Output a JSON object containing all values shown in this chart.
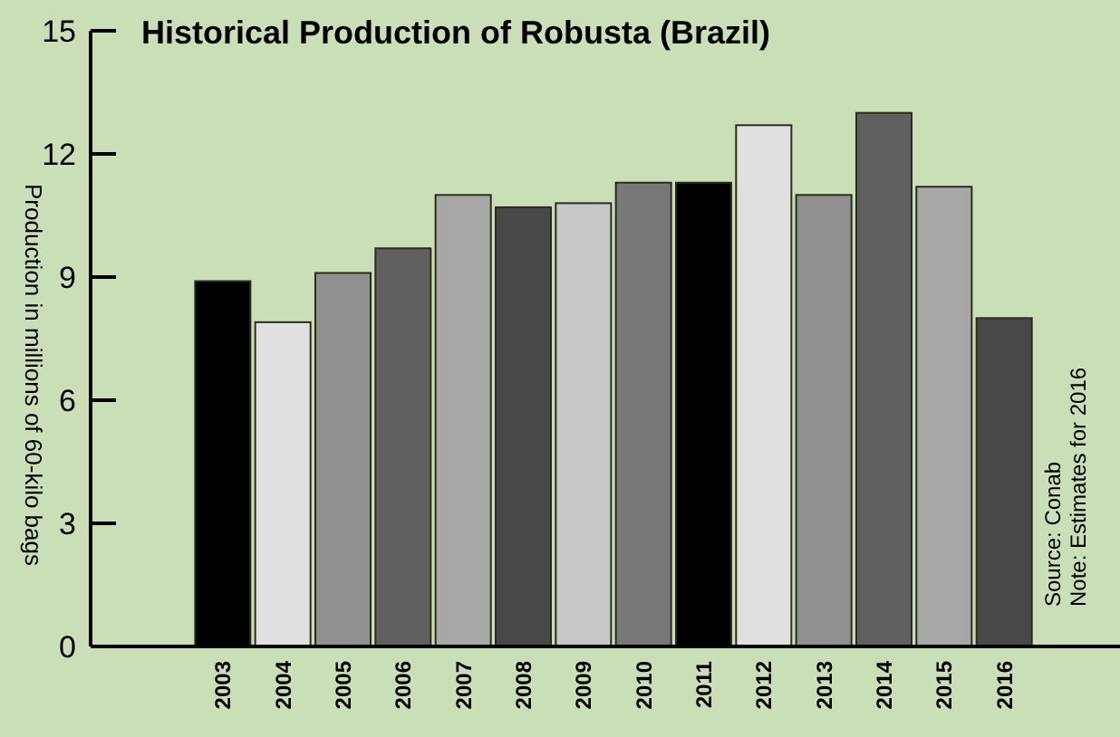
{
  "chart_data": {
    "type": "bar",
    "title": "Historical Production of Robusta (Brazil)",
    "ylabel": "Production in millions of 60-kilo bags",
    "categories": [
      "2003",
      "2004",
      "2005",
      "2006",
      "2007",
      "2008",
      "2009",
      "2010",
      "2011",
      "2012",
      "2013",
      "2014",
      "2015",
      "2016"
    ],
    "values": [
      8.9,
      7.9,
      9.1,
      9.7,
      11.0,
      10.7,
      10.8,
      11.3,
      11.3,
      12.7,
      11.0,
      13.0,
      11.2,
      8.0
    ],
    "colors": [
      "#000000",
      "#e0e0e0",
      "#909090",
      "#606060",
      "#a8a8a8",
      "#484848",
      "#c8c8c8",
      "#787878",
      "#000000",
      "#e0e0e0",
      "#909090",
      "#606060",
      "#a8a8a8",
      "#484848"
    ],
    "ylim": [
      0,
      15
    ],
    "yticks": [
      0,
      3,
      6,
      9,
      12,
      15
    ],
    "grid": false,
    "annotations": [
      "Source: Conab",
      "Note: Estimates for 2016"
    ]
  }
}
